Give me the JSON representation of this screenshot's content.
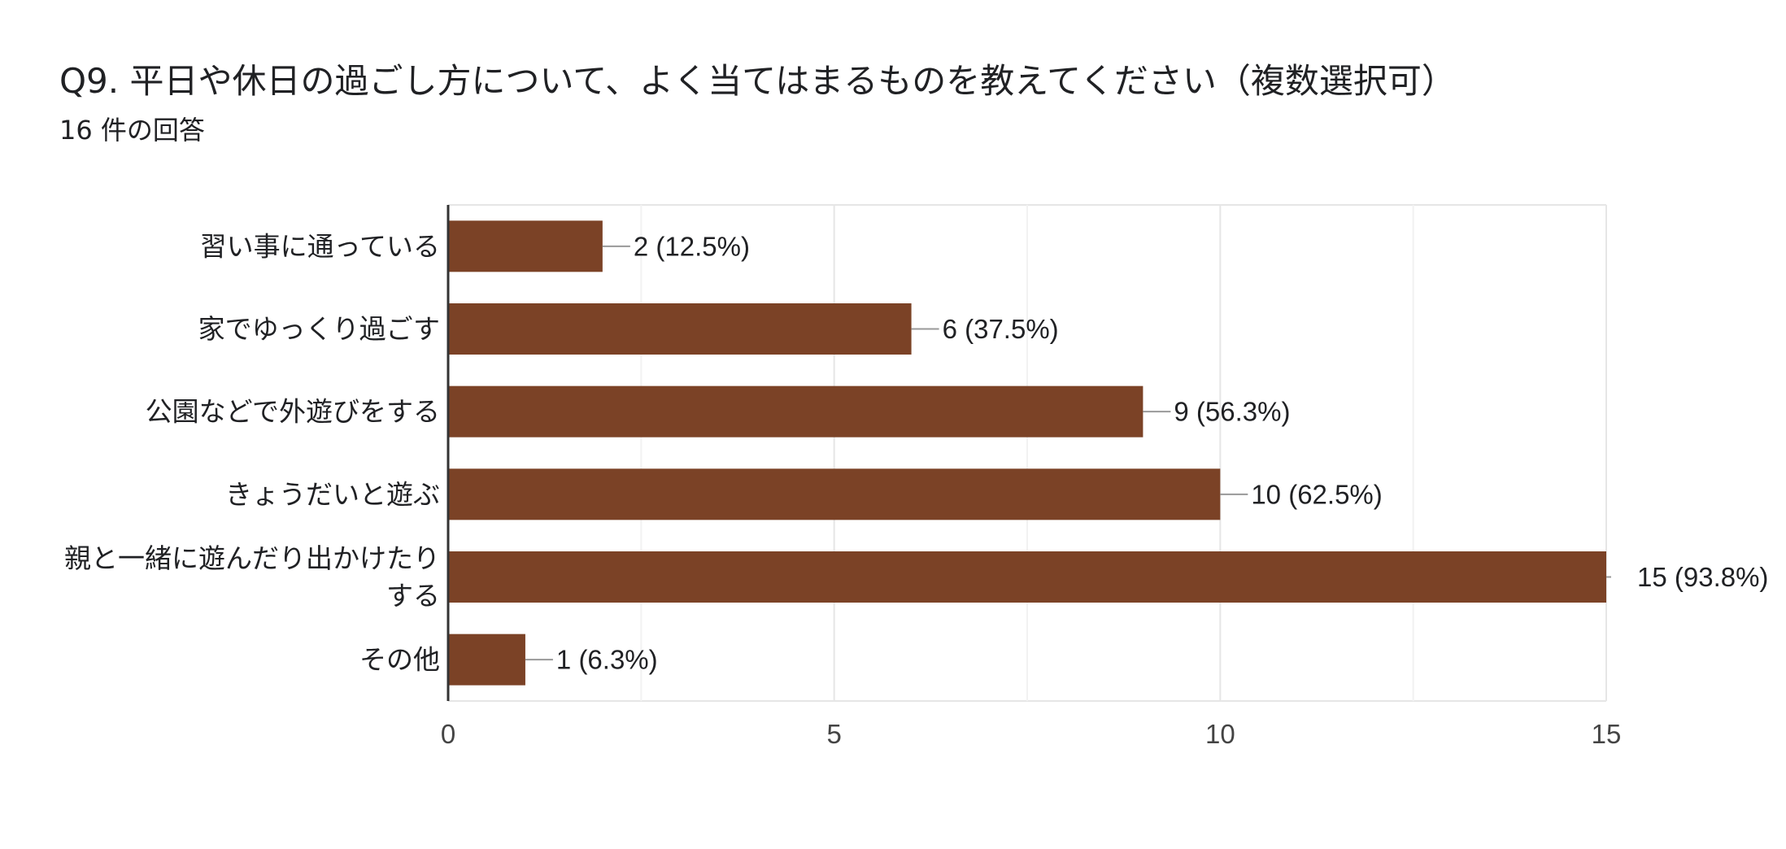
{
  "header": {
    "title": "Q9. 平日や休日の過ごし方について、よく当てはまるものを教えてください（複数選択可）",
    "subtitle": "16 件の回答"
  },
  "colors": {
    "bar": "#7b4226",
    "axis": "#333333",
    "grid": "#e6e6e6",
    "connector": "#999999"
  },
  "chart_data": {
    "type": "bar",
    "orientation": "horizontal",
    "categories": [
      [
        "習い事に通っている"
      ],
      [
        "家でゆっくり過ごす"
      ],
      [
        "公園などで外遊びをする"
      ],
      [
        "きょうだいと遊ぶ"
      ],
      [
        "親と一緒に遊んだり出かけたり",
        "する"
      ],
      [
        "その他"
      ]
    ],
    "values": [
      2,
      6,
      9,
      10,
      15,
      1
    ],
    "value_labels": [
      "2 (12.5%)",
      "6 (37.5%)",
      "9 (56.3%)",
      "10 (62.5%)",
      "15 (93.8%)",
      "1 (6.3%)"
    ],
    "xlim": [
      0,
      15
    ],
    "xticks": [
      0,
      5,
      10,
      15
    ],
    "minor_grid": [
      2.5,
      7.5,
      12.5
    ],
    "grid": true,
    "title": "",
    "xlabel": "",
    "ylabel": ""
  }
}
